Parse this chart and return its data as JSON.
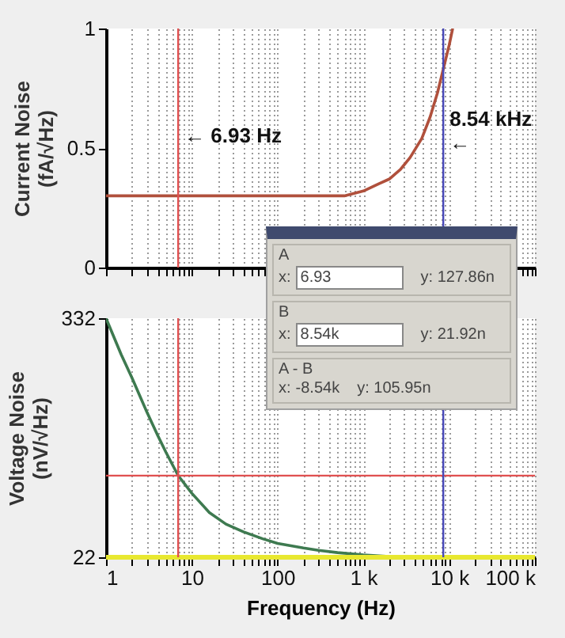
{
  "chart_data": [
    {
      "type": "line",
      "ylabel": "Current Noise\n(fA/√Hz)",
      "log": "x",
      "grid": "x",
      "tick_labels": "y",
      "xlim": [
        1,
        100000
      ],
      "ylim": [
        0,
        1
      ],
      "yticks": [
        0,
        0.5,
        1
      ],
      "xticks": [
        1,
        2,
        3,
        4,
        5,
        6,
        7,
        8,
        9,
        10,
        20,
        30,
        40,
        50,
        60,
        70,
        80,
        90,
        100,
        200,
        300,
        400,
        500,
        600,
        700,
        800,
        900,
        1000,
        2000,
        3000,
        4000,
        5000,
        6000,
        7000,
        8000,
        9000,
        10000,
        20000,
        30000,
        40000,
        50000,
        60000,
        70000,
        80000,
        90000,
        100000
      ],
      "x": [
        1,
        100,
        300,
        600,
        1000,
        1500,
        2000,
        2700,
        3500,
        4800,
        6000,
        7300,
        8540,
        10000,
        11000
      ],
      "series": [
        {
          "color": "#b0503c",
          "values": [
            0.3,
            0.3,
            0.3,
            0.3,
            0.32,
            0.35,
            0.37,
            0.41,
            0.46,
            0.54,
            0.63,
            0.73,
            0.83,
            0.93,
            1.0
          ]
        }
      ],
      "ref_lines": [
        {
          "axis": "x",
          "value": 6.93,
          "color": "#e05050",
          "label": "← 6.93 Hz"
        },
        {
          "axis": "x",
          "value": 8540,
          "color": "#4848b8",
          "label": "8.54 kHz\n←"
        }
      ]
    },
    {
      "type": "line",
      "ylabel": "Voltage Noise\n(nV/√Hz)",
      "xlabel": "Frequency (Hz)",
      "log": "x",
      "grid": "x",
      "xlim": [
        1,
        100000
      ],
      "ylim": [
        22,
        332
      ],
      "yticks": [
        22,
        332
      ],
      "xticks": [
        1,
        {
          "value": 2,
          "label": null
        },
        {
          "value": 3,
          "label": null
        },
        {
          "value": 4,
          "label": null
        },
        {
          "value": 5,
          "label": null
        },
        {
          "value": 6,
          "label": null
        },
        {
          "value": 7,
          "label": null
        },
        {
          "value": 8,
          "label": null
        },
        {
          "value": 9,
          "label": null
        },
        10,
        {
          "value": 20,
          "label": null
        },
        {
          "value": 30,
          "label": null
        },
        {
          "value": 40,
          "label": null
        },
        {
          "value": 50,
          "label": null
        },
        {
          "value": 60,
          "label": null
        },
        {
          "value": 70,
          "label": null
        },
        {
          "value": 80,
          "label": null
        },
        {
          "value": 90,
          "label": null
        },
        100,
        {
          "value": 200,
          "label": null
        },
        {
          "value": 300,
          "label": null
        },
        {
          "value": 400,
          "label": null
        },
        {
          "value": 500,
          "label": null
        },
        {
          "value": 600,
          "label": null
        },
        {
          "value": 700,
          "label": null
        },
        {
          "value": 800,
          "label": null
        },
        {
          "value": 900,
          "label": null
        },
        {
          "value": 1000,
          "label": "1 k"
        },
        {
          "value": 2000,
          "label": null
        },
        {
          "value": 3000,
          "label": null
        },
        {
          "value": 4000,
          "label": null
        },
        {
          "value": 5000,
          "label": null
        },
        {
          "value": 6000,
          "label": null
        },
        {
          "value": 7000,
          "label": null
        },
        {
          "value": 8000,
          "label": null
        },
        {
          "value": 9000,
          "label": null
        },
        {
          "value": 10000,
          "label": "10 k"
        },
        {
          "value": 20000,
          "label": null
        },
        {
          "value": 30000,
          "label": null
        },
        {
          "value": 40000,
          "label": null
        },
        {
          "value": 50000,
          "label": null
        },
        {
          "value": 60000,
          "label": null
        },
        {
          "value": 70000,
          "label": null
        },
        {
          "value": 80000,
          "label": null
        },
        {
          "value": 90000,
          "label": null
        },
        {
          "value": 100000,
          "label": "100 k"
        }
      ],
      "x": [
        1,
        1.5,
        2,
        3,
        4,
        5,
        6.93,
        10,
        16,
        25,
        40,
        67,
        100,
        200,
        300,
        500,
        1000,
        2000,
        8540,
        100000
      ],
      "series": [
        {
          "color": "#3e7a50",
          "values": [
            332,
            285,
            255,
            210,
            180,
            158,
            128,
            105,
            80,
            65,
            55,
            46,
            40,
            34,
            31,
            28,
            25,
            23,
            22,
            22
          ]
        }
      ],
      "ref_lines": [
        {
          "axis": "y",
          "value": 22,
          "color": "#e8e830"
        },
        {
          "axis": "y",
          "value": 127.86,
          "color": "#e05050"
        },
        {
          "axis": "x",
          "value": 6.93,
          "color": "#e05050"
        },
        {
          "axis": "x",
          "value": 8540,
          "color": "#4848b8"
        }
      ],
      "annotations": [
        "A",
        "x: 6.93",
        "y: 127.86n",
        "B",
        "x: 8.54k",
        "y: 21.92n",
        "A - B",
        "x: -8.54k",
        "y: 105.95n"
      ]
    }
  ]
}
